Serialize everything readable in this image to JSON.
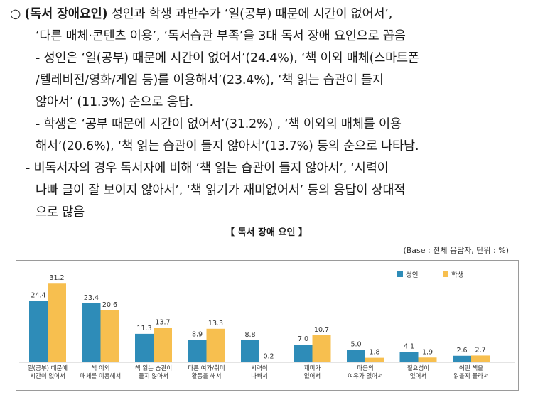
{
  "lines": [
    {
      "prefix": "○  ",
      "bold": "(독서 장애요인)",
      "rest": " 성인과 학생 과반수가 ‘일(공부) 때문에 시간이 없어서’,"
    },
    {
      "text": "‘다른 매체·콘텐츠 이용’, ‘독서습관 부족’을 3대 독서 장애 요인으로 꼽음"
    },
    {
      "text": "- 성인은 ‘일(공부) 때문에 시간이 없어서’(24.4%), ‘책 이외 매체(스마트폰"
    },
    {
      "text": "/텔레비전/영화/게임 등)를 이용해서’(23.4%), ‘책 읽는 습관이 들지"
    },
    {
      "text": "않아서’ (11.3%) 순으로 응답."
    },
    {
      "text": "- 학생은 ‘공부 때문에 시간이 없어서’(31.2%) , ‘책 이외의 매체를 이용"
    },
    {
      "text": "해서’(20.6%),  ‘책 읽는 습관이 들지 않아서’(13.7%) 등의 순으로 나타남."
    },
    {
      "text": "- 비독서자의 경우 독서자에 비해 ‘책 읽는 습관이 들지 않아서’, ‘시력이"
    },
    {
      "text": "나빠 글이 잘 보이지 않아서’, ‘책 읽기가 재미없어서’ 등의 응답이 상대적"
    },
    {
      "text": "으로 많음"
    }
  ],
  "chart_data": {
    "type": "bar",
    "title": "【 독서 장애 요인 】",
    "base_note": "(Base : 전체 응답자, 단위 : %)",
    "categories": [
      [
        "일(공부) 때문에",
        "시간이 없어서"
      ],
      [
        "책 이외",
        "매체를 이용해서"
      ],
      [
        "책 읽는 습관이",
        "들지 않아서"
      ],
      [
        "다른 여가/취미",
        "활동을 해서"
      ],
      [
        "시력이",
        "나빠서"
      ],
      [
        "재미가",
        "없어서"
      ],
      [
        "마음의",
        "여유가 없어서"
      ],
      [
        "필요성이",
        "없어서"
      ],
      [
        "어떤 책을",
        "읽을지 몰라서"
      ]
    ],
    "series": [
      {
        "name": "성인",
        "color": "#2e8cb8",
        "values": [
          24.4,
          23.4,
          11.3,
          8.9,
          8.8,
          7.0,
          5.0,
          4.1,
          2.6
        ]
      },
      {
        "name": "학생",
        "color": "#f7bf4f",
        "values": [
          31.2,
          20.6,
          13.7,
          13.3,
          0.2,
          10.7,
          1.8,
          1.9,
          2.7
        ]
      }
    ],
    "ylim": [
      0,
      35
    ],
    "legend_position": "top-right",
    "grid": false
  }
}
